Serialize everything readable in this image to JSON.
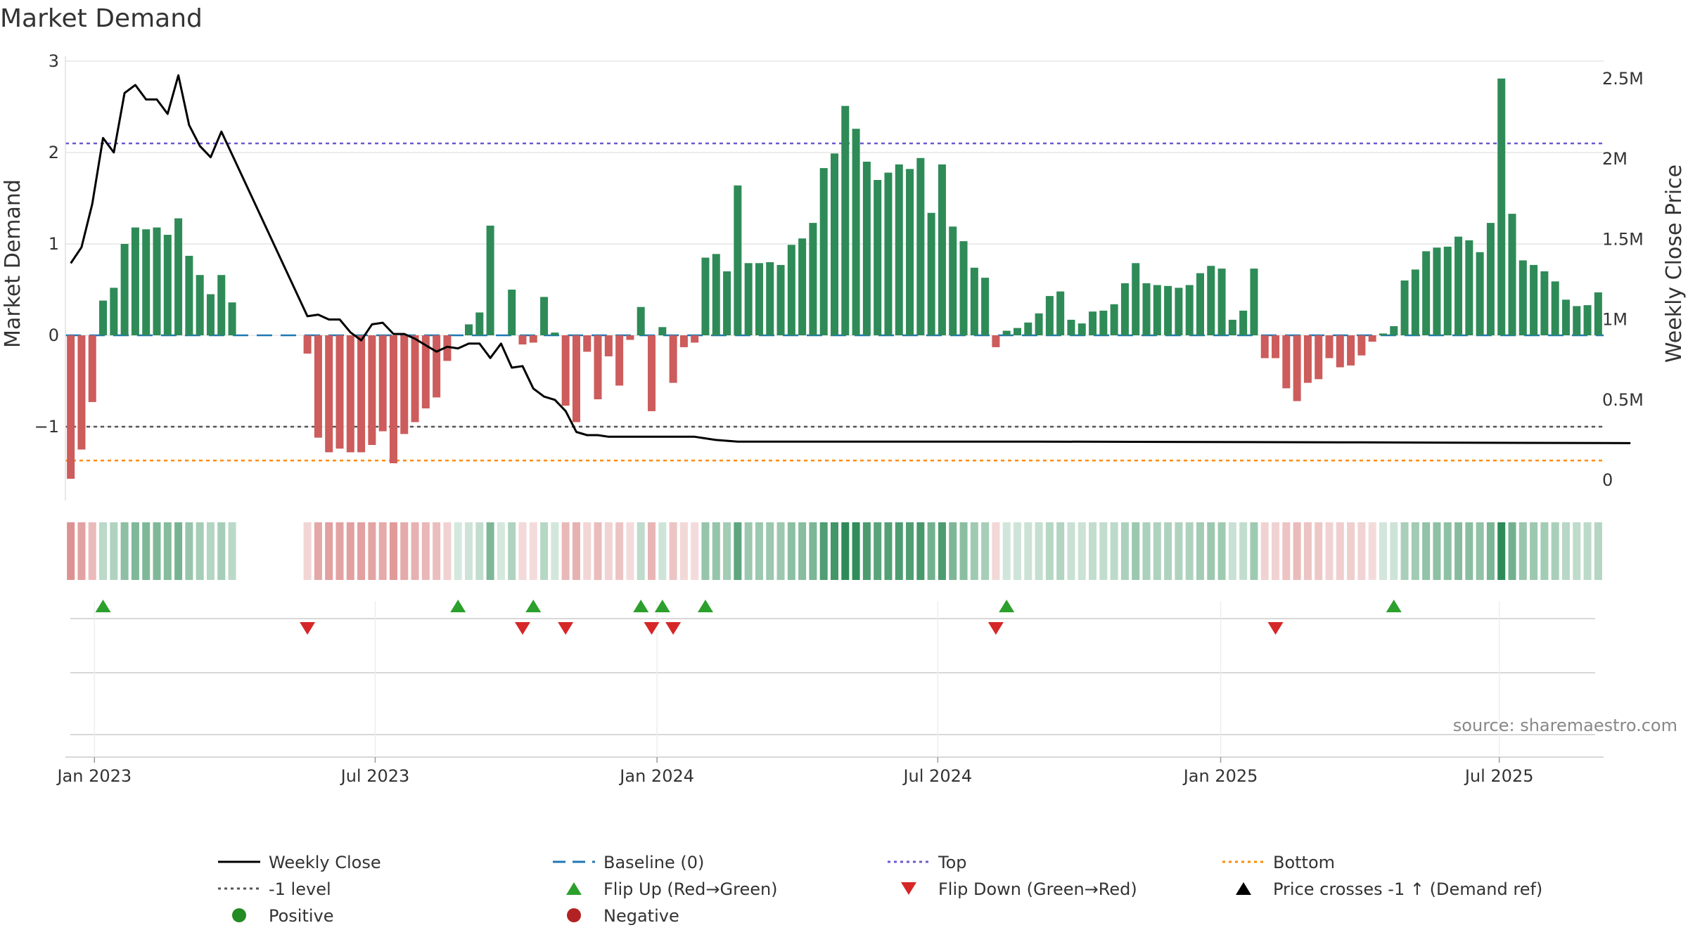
{
  "chart_data": {
    "type": "bar",
    "title": "Market Demand",
    "ylabel": "Market Demand",
    "y2label": "Weekly Close Price",
    "ylim": [
      -1.6,
      3.0
    ],
    "y2lim": [
      0,
      2600000
    ],
    "yticks": [
      {
        "v": 3,
        "label": "3"
      },
      {
        "v": 2,
        "label": "2"
      },
      {
        "v": 1,
        "label": "1"
      },
      {
        "v": 0,
        "label": "0"
      },
      {
        "v": -1,
        "label": "−1"
      }
    ],
    "y2ticks": [
      {
        "v": 2500000,
        "label": "2.5M"
      },
      {
        "v": 2000000,
        "label": "2M"
      },
      {
        "v": 1500000,
        "label": "1.5M"
      },
      {
        "v": 1000000,
        "label": "1M"
      },
      {
        "v": 500000,
        "label": "0.5M"
      },
      {
        "v": 0,
        "label": "0"
      }
    ],
    "xticks": [
      {
        "w": 2.2,
        "label": "Jan 2023"
      },
      {
        "w": 28.3,
        "label": "Jul 2023"
      },
      {
        "w": 54.5,
        "label": "Jan 2024"
      },
      {
        "w": 80.6,
        "label": "Jul 2024"
      },
      {
        "w": 106.9,
        "label": "Jan 2025"
      },
      {
        "w": 132.8,
        "label": "Jul 2025"
      }
    ],
    "demand": [
      -1.57,
      -1.25,
      -0.73,
      0.38,
      0.52,
      1.0,
      1.18,
      1.16,
      1.18,
      1.1,
      1.28,
      0.87,
      0.66,
      0.45,
      0.66,
      0.36,
      null,
      null,
      null,
      null,
      null,
      null,
      -0.2,
      -1.12,
      -1.28,
      -1.24,
      -1.28,
      -1.28,
      -1.2,
      -1.05,
      -1.4,
      -1.08,
      -0.95,
      -0.8,
      -0.68,
      -0.28,
      0,
      0.12,
      0.25,
      1.2,
      0,
      0.5,
      -0.1,
      -0.08,
      0.42,
      0.03,
      -0.77,
      -0.95,
      -0.18,
      -0.7,
      -0.23,
      -0.55,
      -0.05,
      0.31,
      -0.83,
      0.09,
      -0.52,
      -0.13,
      -0.08,
      0.85,
      0.89,
      0.7,
      1.64,
      0.79,
      0.79,
      0.8,
      0.77,
      0.99,
      1.06,
      1.23,
      1.83,
      1.99,
      2.51,
      2.26,
      1.9,
      1.7,
      1.78,
      1.87,
      1.82,
      1.94,
      1.34,
      1.87,
      1.19,
      1.03,
      0.74,
      0.63,
      -0.13,
      0.05,
      0.08,
      0.14,
      0.24,
      0.43,
      0.48,
      0.17,
      0.13,
      0.26,
      0.27,
      0.34,
      0.57,
      0.79,
      0.57,
      0.55,
      0.54,
      0.52,
      0.55,
      0.68,
      0.76,
      0.73,
      0.17,
      0.27,
      0.73,
      -0.25,
      -0.25,
      -0.58,
      -0.72,
      -0.52,
      -0.48,
      -0.25,
      -0.35,
      -0.33,
      -0.22,
      -0.07,
      0.02,
      0.1,
      0.6,
      0.72,
      0.92,
      0.96,
      0.97,
      1.08,
      1.04,
      0.91,
      1.23,
      2.81,
      1.33,
      0.82,
      0.77,
      0.7,
      0.59,
      0.39,
      0.32,
      0.33,
      0.47
    ],
    "close": [
      [
        0,
        1350000.0
      ],
      [
        1,
        1450000.0
      ],
      [
        2,
        1720000.0
      ],
      [
        3,
        2130000.0
      ],
      [
        4,
        2040000.0
      ],
      [
        5,
        2410000.0
      ],
      [
        6,
        2460000.0
      ],
      [
        7,
        2370000.0
      ],
      [
        8,
        2370000.0
      ],
      [
        9,
        2280000.0
      ],
      [
        10,
        2520000.0
      ],
      [
        11,
        2210000.0
      ],
      [
        12,
        2080000.0
      ],
      [
        13,
        2010000.0
      ],
      [
        14,
        2170000.0
      ],
      [
        22,
        1020000.0
      ],
      [
        23,
        1030000.0
      ],
      [
        24,
        1000000.0
      ],
      [
        25,
        1000000.0
      ],
      [
        26,
        920000.0
      ],
      [
        27,
        870000.0
      ],
      [
        28,
        970000.0
      ],
      [
        29,
        980000.0
      ],
      [
        30,
        910000.0
      ],
      [
        31,
        910000.0
      ],
      [
        32,
        880000.0
      ],
      [
        33,
        840000.0
      ],
      [
        34,
        800000.0
      ],
      [
        35,
        830000.0
      ],
      [
        36,
        820000.0
      ],
      [
        37,
        850000.0
      ],
      [
        38,
        850000.0
      ],
      [
        39,
        760000.0
      ],
      [
        40,
        850000.0
      ],
      [
        41,
        700000.0
      ],
      [
        42,
        710000.0
      ],
      [
        43,
        570000.0
      ],
      [
        44,
        520000.0
      ],
      [
        45,
        500000.0
      ],
      [
        46,
        430000.0
      ],
      [
        47,
        300000.0
      ],
      [
        48,
        280000.0
      ],
      [
        49,
        280000.0
      ],
      [
        50,
        270000.0
      ],
      [
        51,
        270000.0
      ],
      [
        52,
        270000.0
      ],
      [
        54,
        270000.0
      ],
      [
        56,
        270000.0
      ],
      [
        58,
        270000.0
      ],
      [
        59,
        260000.0
      ],
      [
        60,
        250000.0
      ],
      [
        62,
        240000.0
      ],
      [
        70,
        240000.0
      ],
      [
        90,
        240000.0
      ],
      [
        120,
        235000.0
      ],
      [
        145,
        230000.0
      ]
    ],
    "flip_up_weeks": [
      3,
      36,
      43,
      53,
      55,
      59,
      87,
      123
    ],
    "flip_down_weeks": [
      22,
      42,
      46,
      54,
      56,
      86,
      112
    ],
    "reference_lines": {
      "top": 2.1,
      "minus_one": -1.0,
      "bottom": -1.37,
      "baseline": 0
    },
    "series": [
      {
        "name": "Weekly Close",
        "style": "line",
        "color": "#000000"
      },
      {
        "name": "Baseline (0)",
        "style": "dash",
        "color": "#1f77b4"
      },
      {
        "name": "Top",
        "style": "dot",
        "color": "#6a5acd"
      },
      {
        "name": "Bottom",
        "style": "dot",
        "color": "#ff8c00"
      },
      {
        "name": "-1 level",
        "style": "dot",
        "color": "#555555"
      },
      {
        "name": "Flip Up (Red→Green)",
        "style": "tri-up",
        "color": "#2ca02c"
      },
      {
        "name": "Flip Down (Green→Red)",
        "style": "tri-down",
        "color": "#d62728"
      },
      {
        "name": "Price crosses -1 ↑ (Demand ref)",
        "style": "tri-up",
        "color": "#000000"
      },
      {
        "name": "Positive",
        "style": "dot-marker",
        "color": "#228b22"
      },
      {
        "name": "Negative",
        "style": "dot-marker",
        "color": "#b22222"
      }
    ],
    "source": "source: sharemaestro.com",
    "colors": {
      "positive": "#2e8b57",
      "negative": "#cd5c5c"
    }
  }
}
